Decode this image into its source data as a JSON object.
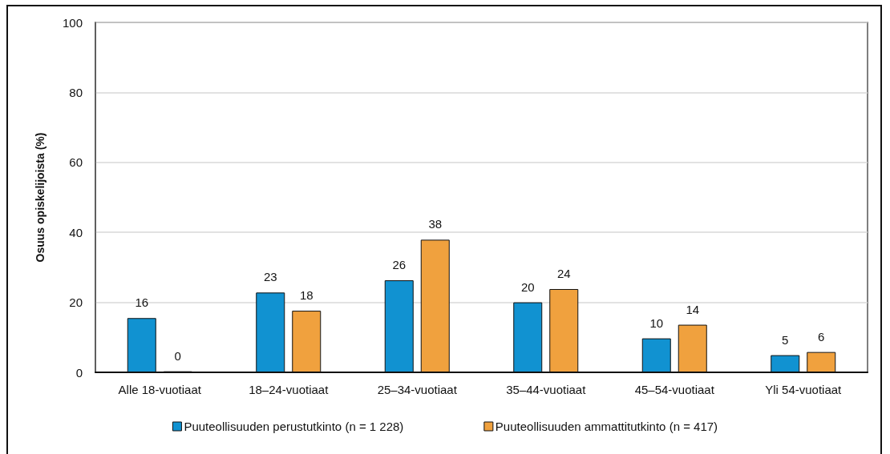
{
  "chart_data": {
    "type": "bar",
    "ylabel": "Osuus opiskelijoista (%)",
    "categories": [
      "Alle 18-vuotiaat",
      "18–24-vuotiaat",
      "25–34-vuotiaat",
      "35–44-vuotiaat",
      "45–54-vuotiaat",
      "Yli 54-vuotiaat"
    ],
    "series": [
      {
        "name": "Puuteollisuuden perustutkinto (n = 1 228)",
        "color": "#1192d1",
        "values": [
          15.5,
          22.8,
          26.3,
          20,
          9.7,
          4.9
        ],
        "value_labels": [
          "16",
          "23",
          "26",
          "20",
          "10",
          "5"
        ]
      },
      {
        "name": "Puuteollisuuden ammattitutkinto (n = 417)",
        "color": "#f0a13e",
        "values": [
          0.3,
          17.6,
          37.9,
          23.8,
          13.6,
          5.8
        ],
        "value_labels": [
          "0",
          "18",
          "38",
          "24",
          "14",
          "6"
        ]
      }
    ],
    "ylim": [
      0,
      100
    ],
    "yticks": [
      0,
      20,
      40,
      60,
      80,
      100
    ],
    "grid": "y",
    "legend": "bottom"
  }
}
